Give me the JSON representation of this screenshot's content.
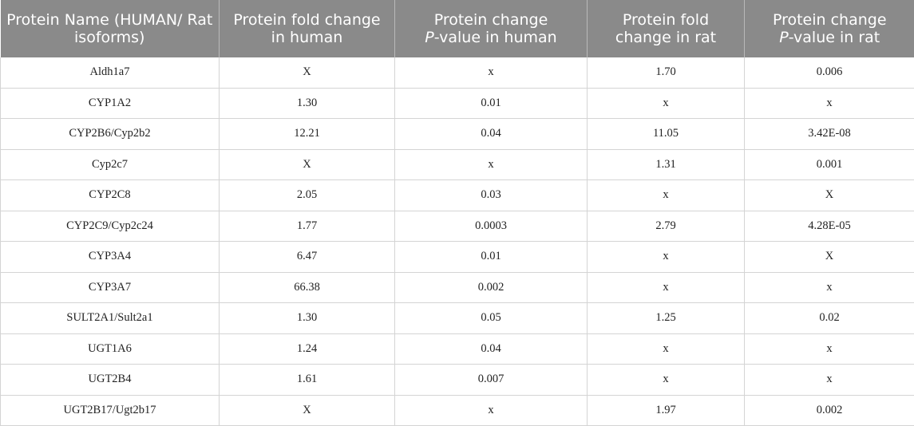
{
  "table": {
    "headers": {
      "protein_name": "Protein Name (HUMAN/ Rat isoforms)",
      "fold_human": "Protein fold change in human",
      "pvalue_human_prefix": "Protein change",
      "pvalue_human_p": "P",
      "pvalue_human_suffix": "-value in human",
      "fold_rat": "Protein fold change in rat",
      "pvalue_rat_prefix": "Protein change",
      "pvalue_rat_p": "P",
      "pvalue_rat_suffix": "-value in rat"
    },
    "rows": [
      [
        "Aldh1a7",
        "X",
        "x",
        "1.70",
        "0.006"
      ],
      [
        "CYP1A2",
        "1.30",
        "0.01",
        "x",
        "x"
      ],
      [
        "CYP2B6/Cyp2b2",
        "12.21",
        "0.04",
        "11.05",
        "3.42E-08"
      ],
      [
        "Cyp2c7",
        "X",
        "x",
        "1.31",
        "0.001"
      ],
      [
        "CYP2C8",
        "2.05",
        "0.03",
        "x",
        "X"
      ],
      [
        "CYP2C9/Cyp2c24",
        "1.77",
        "0.0003",
        "2.79",
        "4.28E-05"
      ],
      [
        "CYP3A4",
        "6.47",
        "0.01",
        "x",
        "X"
      ],
      [
        "CYP3A7",
        "66.38",
        "0.002",
        "x",
        "x"
      ],
      [
        "SULT2A1/Sult2a1",
        "1.30",
        "0.05",
        "1.25",
        "0.02"
      ],
      [
        "UGT1A6",
        "1.24",
        "0.04",
        "x",
        "x"
      ],
      [
        "UGT2B4",
        "1.61",
        "0.007",
        "x",
        "x"
      ],
      [
        "UGT2B17/Ugt2b17",
        "X",
        "x",
        "1.97",
        "0.002"
      ]
    ]
  }
}
